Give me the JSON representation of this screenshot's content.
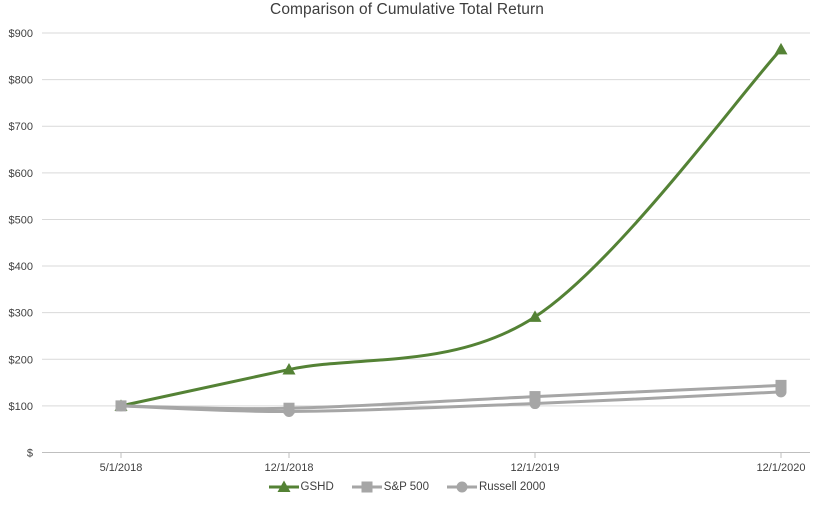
{
  "chart_data": {
    "type": "line",
    "title": "Comparison of Cumulative Total Return",
    "xlabel": "",
    "ylabel": "",
    "categories": [
      "5/1/2018",
      "12/1/2018",
      "12/1/2019",
      "12/1/2020"
    ],
    "series": [
      {
        "name": "GSHD",
        "color": "#548235",
        "marker": "triangle",
        "values": [
          100,
          178,
          291,
          865
        ]
      },
      {
        "name": "S&P 500",
        "color": "#A6A6A6",
        "marker": "square",
        "values": [
          100,
          95,
          120,
          144
        ]
      },
      {
        "name": "Russell 2000",
        "color": "#A6A6A6",
        "marker": "circle",
        "values": [
          100,
          88,
          105,
          130
        ]
      }
    ],
    "ylim": [
      0,
      900
    ],
    "y_tick_step": 100,
    "y_tick_labels": [
      "$",
      "$100",
      "$200",
      "$300",
      "$400",
      "$500",
      "$600",
      "$700",
      "$800",
      "$900"
    ],
    "grid": true,
    "gridline_color": "#D9D9D9",
    "axis_line_color": "#BFBFBF",
    "text_color": "#3F3F3F",
    "legend_position": "bottom",
    "line_style": "smooth"
  }
}
